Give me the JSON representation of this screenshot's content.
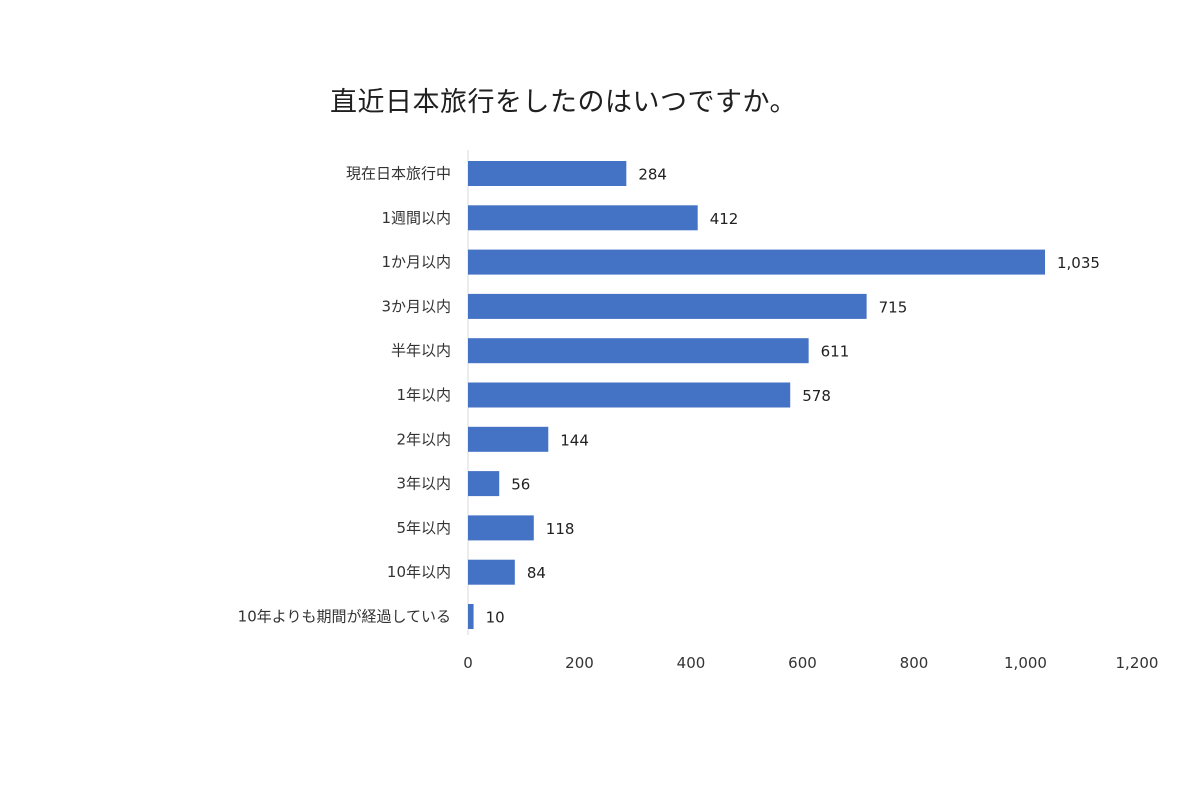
{
  "chart_data": {
    "type": "bar",
    "orientation": "horizontal",
    "title": "直近日本旅行をしたのはいつですか。",
    "categories": [
      "現在日本旅行中",
      "1週間以内",
      "1か月以内",
      "3か月以内",
      "半年以内",
      "1年以内",
      "2年以内",
      "3年以内",
      "5年以内",
      "10年以内",
      "10年よりも期間が経過している"
    ],
    "values": [
      284,
      412,
      1035,
      715,
      611,
      578,
      144,
      56,
      118,
      84,
      10
    ],
    "value_labels": [
      "284",
      "412",
      "1,035",
      "715",
      "611",
      "578",
      "144",
      "56",
      "118",
      "84",
      "10"
    ],
    "xlim": [
      0,
      1200
    ],
    "xticks": [
      0,
      200,
      400,
      600,
      800,
      1000,
      1200
    ],
    "xtick_labels": [
      "0",
      "200",
      "400",
      "600",
      "800",
      "1,000",
      "1,200"
    ],
    "grid": false,
    "legend": "none",
    "bar_color": "#4472c4",
    "axis_color": "#d9d9d9"
  }
}
